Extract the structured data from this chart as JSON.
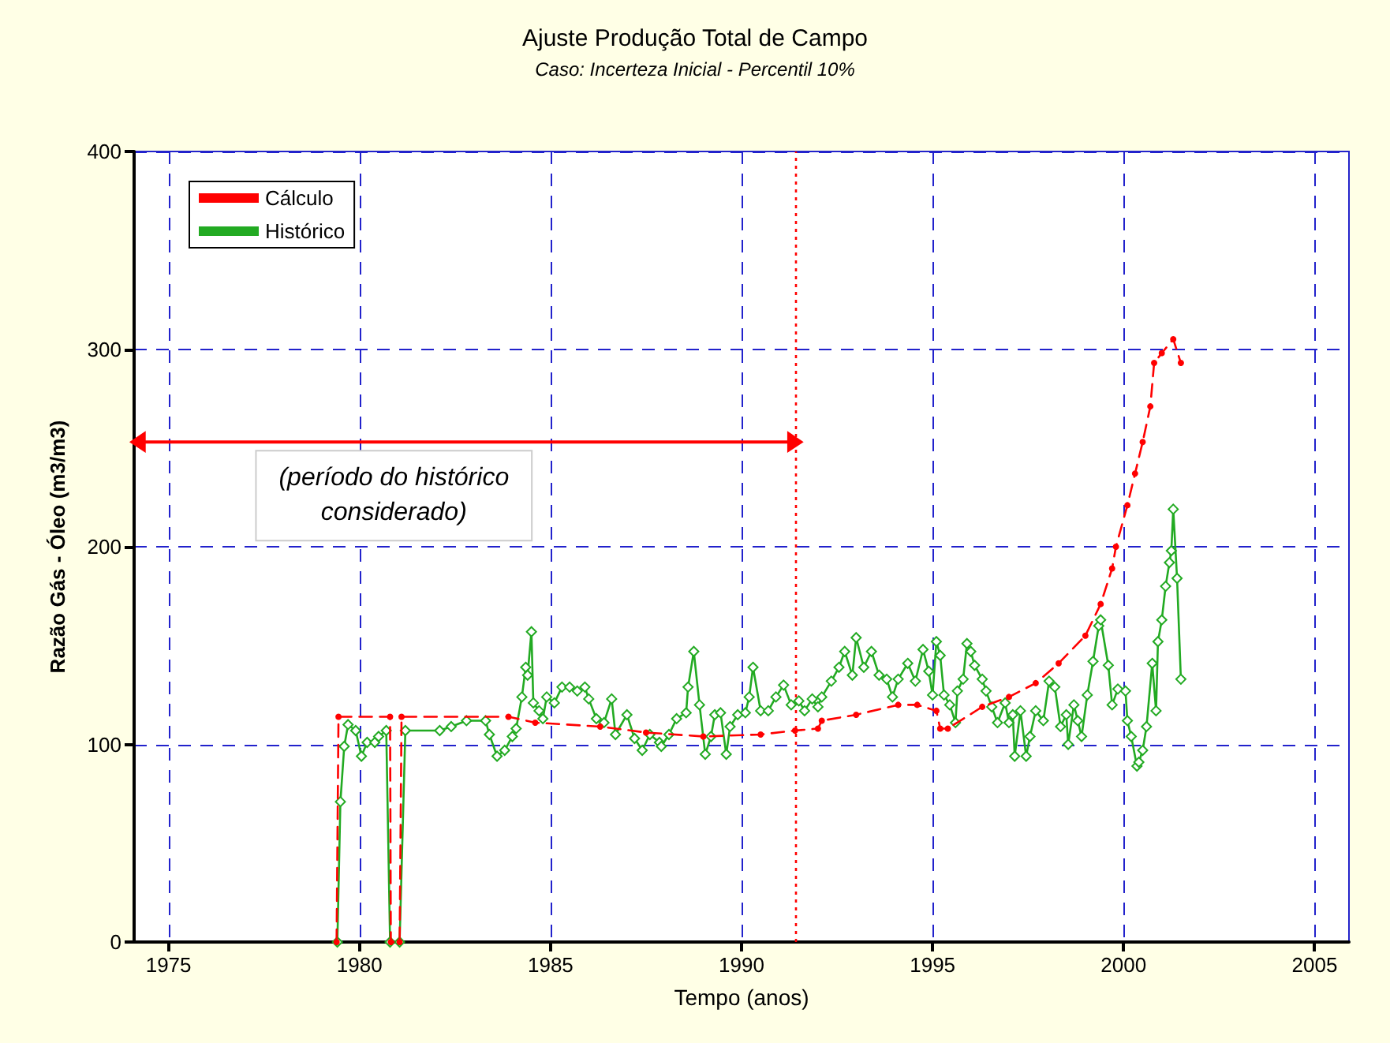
{
  "chart_data": {
    "type": "line",
    "title": "Ajuste Produção Total de Campo",
    "subtitle": "Caso: Incerteza Inicial - Percentil 10%",
    "xlabel": "Tempo (anos)",
    "ylabel": "Razão Gás - Óleo (m3/m3)",
    "xlim": [
      1974.1,
      2005.9
    ],
    "xticks": [
      1975,
      1980,
      1985,
      1990,
      1995,
      2000,
      2005
    ],
    "ylim": [
      0,
      400
    ],
    "yticks": [
      0,
      100,
      200,
      300,
      400
    ],
    "grid": true,
    "legend": "top left",
    "series": [
      {
        "name": "Cálculo",
        "color": "#ff0000",
        "marker": "circle",
        "line_style": "dashed",
        "x": [
          1979.4,
          1979.45,
          1980.8,
          1980.82,
          1981.05,
          1981.1,
          1983.9,
          1984.6,
          1986.3,
          1987.5,
          1989.0,
          1990.5,
          1991.4,
          1992.0,
          1992.1,
          1993.0,
          1994.1,
          1994.6,
          1995.1,
          1995.2,
          1995.4,
          1996.3,
          1997.0,
          1997.7,
          1998.3,
          1999.0,
          1999.4,
          1999.7,
          1999.8,
          2000.1,
          2000.3,
          2000.5,
          2000.7,
          2000.8,
          2001.0,
          2001.3,
          2001.5
        ],
        "values": [
          0,
          114,
          114,
          0,
          0,
          114,
          114,
          111,
          109,
          106,
          104,
          105,
          107,
          108,
          112,
          115,
          120,
          120,
          117,
          108,
          108,
          119,
          124,
          131,
          141,
          155,
          171,
          189,
          200,
          221,
          237,
          253,
          271,
          293,
          298,
          305,
          293
        ]
      },
      {
        "name": "Histórico",
        "color": "#22aa22",
        "marker": "diamond",
        "line_style": "solid",
        "x": [
          1979.42,
          1979.5,
          1979.6,
          1979.7,
          1979.9,
          1980.05,
          1980.2,
          1980.4,
          1980.5,
          1980.7,
          1980.8,
          1981.05,
          1981.2,
          1982.1,
          1982.4,
          1982.8,
          1983.3,
          1983.4,
          1983.6,
          1983.8,
          1984.0,
          1984.1,
          1984.25,
          1984.35,
          1984.4,
          1984.5,
          1984.55,
          1984.7,
          1984.8,
          1984.9,
          1985.1,
          1985.3,
          1985.5,
          1985.7,
          1985.9,
          1986.0,
          1986.2,
          1986.4,
          1986.6,
          1986.7,
          1987.0,
          1987.2,
          1987.4,
          1987.6,
          1987.85,
          1987.9,
          1988.1,
          1988.3,
          1988.55,
          1988.6,
          1988.75,
          1988.9,
          1989.05,
          1989.2,
          1989.3,
          1989.45,
          1989.6,
          1989.7,
          1989.9,
          1990.1,
          1990.2,
          1990.3,
          1990.5,
          1990.7,
          1990.9,
          1991.1,
          1991.3,
          1991.5,
          1991.65,
          1991.85,
          1992.0,
          1992.1,
          1992.35,
          1992.55,
          1992.7,
          1992.9,
          1993.0,
          1993.2,
          1993.4,
          1993.6,
          1993.8,
          1993.95,
          1994.1,
          1994.35,
          1994.55,
          1994.75,
          1994.9,
          1995.0,
          1995.1,
          1995.2,
          1995.3,
          1995.45,
          1995.6,
          1995.65,
          1995.8,
          1995.9,
          1996.0,
          1996.1,
          1996.3,
          1996.4,
          1996.55,
          1996.7,
          1996.9,
          1997.0,
          1997.1,
          1997.15,
          1997.3,
          1997.45,
          1997.55,
          1997.7,
          1997.9,
          1998.05,
          1998.2,
          1998.35,
          1998.5,
          1998.55,
          1998.7,
          1998.8,
          1998.9,
          1999.05,
          1999.2,
          1999.35,
          1999.4,
          1999.6,
          1999.7,
          1999.85,
          2000.05,
          2000.1,
          2000.2,
          2000.35,
          2000.4,
          2000.5,
          2000.6,
          2000.75,
          2000.85,
          2000.9,
          2001.0,
          2001.1,
          2001.2,
          2001.25,
          2001.3,
          2001.4,
          2001.5
        ],
        "values": [
          0,
          71,
          99,
          110,
          107,
          94,
          101,
          101,
          104,
          107,
          0,
          0,
          107,
          107,
          109,
          112,
          112,
          105,
          94,
          97,
          104,
          108,
          124,
          139,
          135,
          157,
          121,
          117,
          113,
          124,
          121,
          129,
          129,
          127,
          129,
          123,
          113,
          111,
          123,
          105,
          115,
          103,
          97,
          105,
          101,
          99,
          105,
          113,
          116,
          129,
          147,
          120,
          95,
          104,
          115,
          116,
          95,
          109,
          115,
          116,
          124,
          139,
          117,
          117,
          124,
          130,
          120,
          122,
          117,
          123,
          119,
          124,
          132,
          139,
          147,
          135,
          154,
          139,
          147,
          135,
          133,
          124,
          133,
          141,
          132,
          148,
          137,
          125,
          152,
          145,
          125,
          120,
          111,
          127,
          133,
          151,
          147,
          140,
          133,
          127,
          119,
          111,
          121,
          111,
          115,
          94,
          117,
          94,
          104,
          117,
          112,
          132,
          129,
          109,
          115,
          100,
          120,
          112,
          104,
          125,
          142,
          160,
          163,
          140,
          120,
          128,
          127,
          112,
          104,
          89,
          91,
          97,
          109,
          141,
          117,
          152,
          163,
          180,
          192,
          198,
          219,
          184,
          133
        ]
      },
      {
        "type": "line",
        "color": "#ff0000",
        "marker": "triangle",
        "line_style": "solid",
        "x": [
          1974.2,
          1991.4
        ],
        "values": [
          253,
          253
        ]
      }
    ],
    "ref_lines": [
      {
        "axis": "x",
        "value": 1991.4,
        "color": "#ff0000",
        "line_style": "dotted"
      }
    ],
    "annotations": [
      {
        "text": "(período do histórico considerado)",
        "x": 1980.9,
        "y": 253
      }
    ]
  }
}
